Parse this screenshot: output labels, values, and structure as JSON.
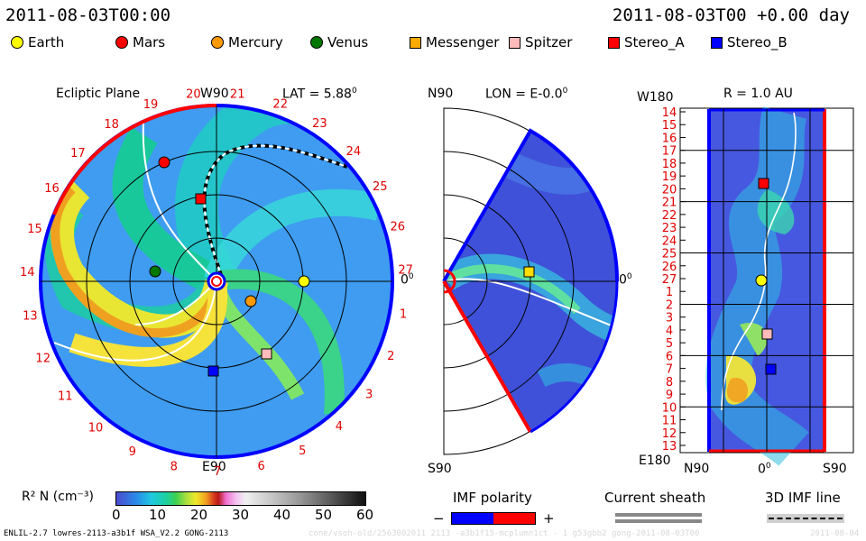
{
  "header": {
    "date_left": "2011-08-03T00:00",
    "date_right": "2011-08-03T00 +0.00 day"
  },
  "legend": [
    {
      "name": "Earth",
      "shape": "circle",
      "color": "#ffff00"
    },
    {
      "name": "Mars",
      "shape": "circle",
      "color": "#ff0000"
    },
    {
      "name": "Mercury",
      "shape": "circle",
      "color": "#ff9900"
    },
    {
      "name": "Venus",
      "shape": "circle",
      "color": "#007700"
    },
    {
      "name": "Messenger",
      "shape": "square",
      "color": "#ffaa00"
    },
    {
      "name": "Spitzer",
      "shape": "square",
      "color": "#ffbbbb"
    },
    {
      "name": "Stereo_A",
      "shape": "square",
      "color": "#ff0000"
    },
    {
      "name": "Stereo_B",
      "shape": "square",
      "color": "#0000ff"
    }
  ],
  "ecliptic": {
    "title": "Ecliptic Plane",
    "top_label": "W90",
    "bottom_label": "E90",
    "right_label": "0",
    "lat_label": "LAT = 5.88",
    "degree": "0",
    "sectors": [
      "20",
      "21",
      "22",
      "23",
      "24",
      "25",
      "26",
      "27",
      "1",
      "2",
      "3",
      "4",
      "5",
      "6",
      "7",
      "8",
      "9",
      "10",
      "11",
      "12",
      "13",
      "14",
      "15",
      "16",
      "17",
      "18",
      "19"
    ]
  },
  "meridional": {
    "top_label": "N90",
    "bottom_label": "S90",
    "right_label": "0",
    "lon_label": "LON = E-0.0",
    "degree": "0"
  },
  "radial": {
    "title": "R = 1.0 AU",
    "top_label": "W180",
    "bottom_label": "E180",
    "x_labels": [
      "N90",
      "0",
      "S90"
    ],
    "degree": "0",
    "y_labels": [
      "14",
      "15",
      "16",
      "17",
      "18",
      "19",
      "20",
      "21",
      "22",
      "23",
      "24",
      "25",
      "26",
      "27",
      "1",
      "2",
      "3",
      "4",
      "5",
      "6",
      "7",
      "8",
      "9",
      "10",
      "11",
      "12",
      "13"
    ]
  },
  "colorbar": {
    "label": "R² N (cm⁻³)",
    "ticks": [
      "0",
      "10",
      "20",
      "30",
      "40",
      "50",
      "60"
    ]
  },
  "imf_polarity": {
    "label": "IMF polarity",
    "minus": "−",
    "plus": "+",
    "neg_color": "#0000ff",
    "pos_color": "#ff0000"
  },
  "current_sheath": {
    "label": "Current sheath"
  },
  "imf_line": {
    "label": "3D IMF line"
  },
  "footer": {
    "left": "ENLIL-2.7 lowres-2113-a3b1f WSA_V2.2 GONG-2113",
    "right": "cone/vsoh-old/2563002011 2113 -a3b1f15-mcplumn1ct - 1 g53gbb2 gong-2011-08-03T00",
    "right2": "2011-08-04"
  }
}
